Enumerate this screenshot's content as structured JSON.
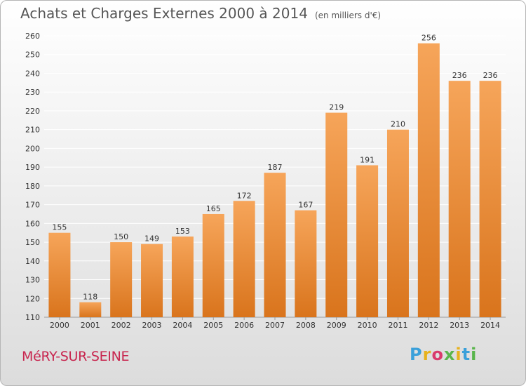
{
  "chart_data": {
    "type": "bar",
    "title": "Achats et Charges Externes 2000 à 2014",
    "subtitle": "(en milliers d'€)",
    "categories": [
      "2000",
      "2001",
      "2002",
      "2003",
      "2004",
      "2005",
      "2006",
      "2007",
      "2008",
      "2009",
      "2010",
      "2011",
      "2012",
      "2013",
      "2014"
    ],
    "values": [
      155,
      118,
      150,
      149,
      153,
      165,
      172,
      187,
      167,
      219,
      191,
      210,
      256,
      236,
      236
    ],
    "ylim": [
      110,
      260
    ],
    "ytick_step": 10,
    "grid": true,
    "bar_color_top": "#f6a55a",
    "bar_color_bottom": "#d9741c",
    "grid_color": "#ffffff"
  },
  "footer": {
    "town": "MéRY-SUR-SEINE",
    "logo": {
      "letters": [
        "P",
        "r",
        "o",
        "x",
        "i",
        "t",
        "i"
      ],
      "colors": [
        "#3aa0da",
        "#e7b21d",
        "#d93a6b",
        "#59b54b",
        "#e7b21d",
        "#3aa0da",
        "#59b54b"
      ]
    }
  }
}
